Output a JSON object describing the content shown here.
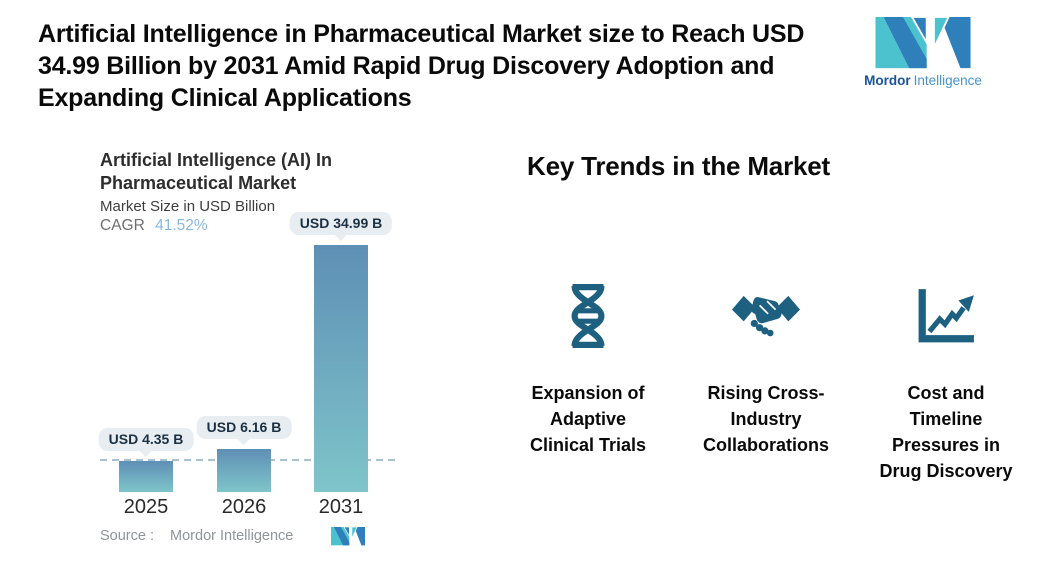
{
  "header": {
    "title_lines": [
      "Artificial Intelligence in Pharmaceutical Market size to Reach USD",
      "34.99 Billion by 2031 Amid Rapid Drug Discovery Adoption and",
      "Expanding Clinical Applications"
    ]
  },
  "brand": {
    "name_bold": "Mordor",
    "name_light": "Intelligence",
    "logo_icon": "mordor-intelligence-logo-icon",
    "logo_teal": "#4cc2ce",
    "logo_blue": "#2e7fba"
  },
  "chart": {
    "title_lines": [
      "Artificial Intelligence (AI) In",
      "Pharmaceutical Market"
    ],
    "subtitle": "Market Size in USD Billion",
    "cagr_label": "CAGR",
    "cagr_value": "41.52%",
    "source_label": "Source :",
    "source_value": "Mordor Intelligence"
  },
  "chart_data": {
    "type": "bar",
    "categories": [
      "2025",
      "2026",
      "2031"
    ],
    "values": [
      4.35,
      6.16,
      34.99
    ],
    "value_labels": [
      "USD 4.35 B",
      "USD 6.16 B",
      "USD 34.99 B"
    ],
    "title": "Artificial Intelligence (AI) In Pharmaceutical Market",
    "ylabel": "Market Size in USD Billion",
    "unit": "USD Billion",
    "cagr": "41.52%",
    "ylim": [
      0,
      35
    ],
    "grid": false,
    "legend": "none",
    "reference_line_at_value": 4.35,
    "bar_gradient_top": "#5e8fb5",
    "bar_gradient_bottom": "#7fc5ca",
    "reference_line_color": "#a8c2d2",
    "value_label_bg": "#e7edf1"
  },
  "trends": {
    "heading": "Key Trends in the Market",
    "icon_color": "#1d6080",
    "items": [
      {
        "icon": "dna-icon",
        "label_lines": [
          "Expansion of",
          "Adaptive",
          "Clinical Trials"
        ]
      },
      {
        "icon": "handshake-icon",
        "label_lines": [
          "Rising Cross-",
          "Industry",
          "Collaborations"
        ]
      },
      {
        "icon": "growth-chart-icon",
        "label_lines": [
          "Cost and",
          "Timeline",
          "Pressures in",
          "Drug Discovery"
        ]
      }
    ]
  }
}
